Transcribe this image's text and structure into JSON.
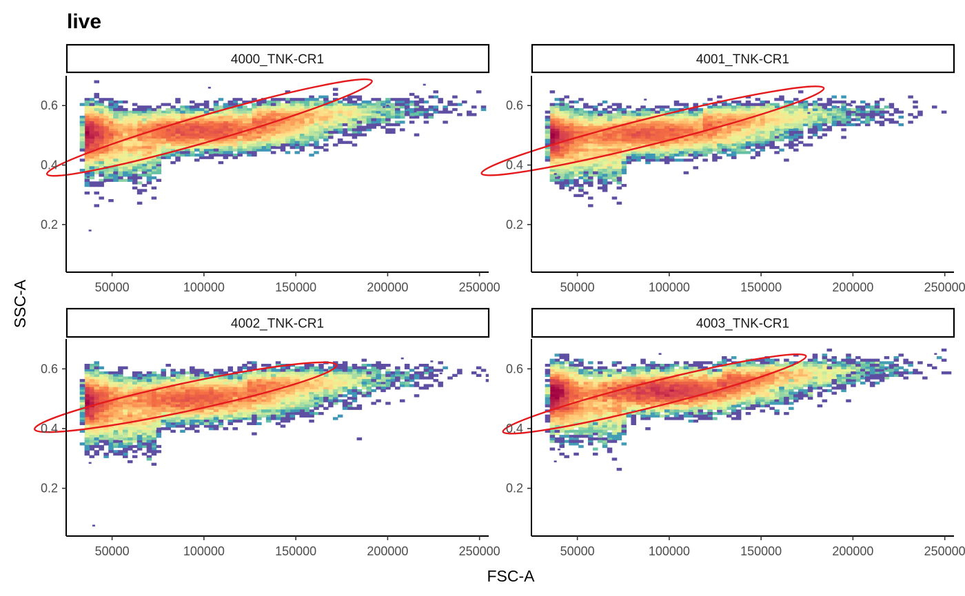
{
  "chart_data": {
    "type": "scatter",
    "title": "live",
    "xlabel": "FSC-A",
    "ylabel": "SSC-A",
    "xlim": [
      25000,
      255000
    ],
    "ylim": [
      0.04,
      0.7
    ],
    "x_ticks": [
      50000,
      100000,
      150000,
      200000,
      250000
    ],
    "x_tick_labels": [
      "50000",
      "100000",
      "150000",
      "200000",
      "250000"
    ],
    "y_ticks": [
      0.2,
      0.4,
      0.6
    ],
    "y_tick_labels": [
      "0.2",
      "0.4",
      "0.6"
    ],
    "grid": false,
    "legend": "none",
    "density_colors": [
      "#5e4fa2",
      "#3288bd",
      "#66c2a5",
      "#abdda4",
      "#e6f598",
      "#fee08b",
      "#fdae61",
      "#f46d43",
      "#d53e4f",
      "#9e0142"
    ],
    "gate_color": "#e41a1c",
    "panels": [
      {
        "label": "4000_TNK-CR1",
        "density_center": [
          97000,
          0.515
        ],
        "core_spread": [
          30000,
          0.03
        ],
        "min_fsc": 35000,
        "gate": {
          "center": [
            103000,
            0.526
          ],
          "semi_axis_x": 92000,
          "semi_axis_y": 0.045,
          "tilt_deg": 16
        },
        "outliers": [
          [
            38000,
            0.18
          ],
          [
            37000,
            0.36
          ],
          [
            46000,
            0.345
          ],
          [
            220000,
            0.67
          ],
          [
            210000,
            0.59
          ],
          [
            215000,
            0.58
          ],
          [
            200000,
            0.6
          ],
          [
            198000,
            0.595
          ],
          [
            103000,
            0.66
          ]
        ]
      },
      {
        "label": "4001_TNK-CR1",
        "density_center": [
          88000,
          0.505
        ],
        "core_spread": [
          30000,
          0.03
        ],
        "min_fsc": 35000,
        "gate": {
          "center": [
            91000,
            0.515
          ],
          "semi_axis_x": 96000,
          "semi_axis_y": 0.044,
          "tilt_deg": 14
        },
        "outliers": [
          [
            46000,
            0.315
          ],
          [
            38000,
            0.37
          ],
          [
            40000,
            0.36
          ],
          [
            199000,
            0.6
          ],
          [
            192000,
            0.595
          ],
          [
            185000,
            0.59
          ],
          [
            176000,
            0.575
          ],
          [
            87000,
            0.62
          ]
        ]
      },
      {
        "label": "4002_TNK-CR1",
        "density_center": [
          93000,
          0.5
        ],
        "core_spread": [
          30000,
          0.032
        ],
        "min_fsc": 35000,
        "gate": {
          "center": [
            90000,
            0.505
          ],
          "semi_axis_x": 84000,
          "semi_axis_y": 0.047,
          "tilt_deg": 12
        },
        "outliers": [
          [
            40000,
            0.075
          ],
          [
            38000,
            0.285
          ],
          [
            41000,
            0.32
          ],
          [
            229000,
            0.585
          ],
          [
            224000,
            0.625
          ],
          [
            208000,
            0.635
          ],
          [
            200000,
            0.61
          ],
          [
            196000,
            0.6
          ]
        ]
      },
      {
        "label": "4003_TNK-CR1",
        "density_center": [
          98000,
          0.525
        ],
        "core_spread": [
          28000,
          0.03
        ],
        "min_fsc": 35000,
        "gate": {
          "center": [
            92000,
            0.516
          ],
          "semi_axis_x": 85000,
          "semi_axis_y": 0.042,
          "tilt_deg": 14
        },
        "outliers": [
          [
            38000,
            0.29
          ],
          [
            40000,
            0.33
          ],
          [
            42000,
            0.345
          ],
          [
            245000,
            0.65
          ],
          [
            218000,
            0.6
          ],
          [
            217000,
            0.585
          ],
          [
            213000,
            0.58
          ],
          [
            205000,
            0.575
          ],
          [
            95000,
            0.65
          ]
        ]
      }
    ]
  }
}
